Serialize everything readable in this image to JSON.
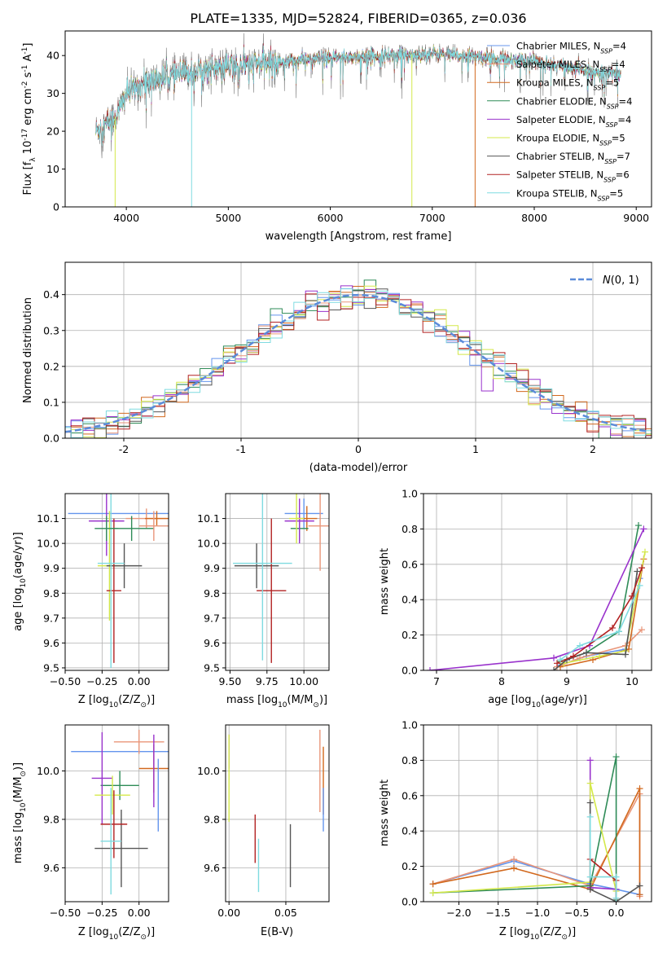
{
  "figure_title": "PLATE=1335, MJD=52824, FIBERID=0365, z=0.036",
  "colors": {
    "chabrier_miles": "#6495ed",
    "salpeter_miles": "#e9967a",
    "kroupa_miles": "#d2691e",
    "chabrier_elodie": "#2e8b57",
    "salpeter_elodie": "#9932cc",
    "kroupa_elodie": "#d4e84a",
    "chabrier_stelib": "#555555",
    "salpeter_stelib": "#b22222",
    "kroupa_stelib": "#7fdbe0",
    "data": "#888888",
    "gauss": "#5b8bd9",
    "grid": "#b0b0b0"
  },
  "legend_models": [
    {
      "key": "chabrier_miles",
      "name": "Chabrier MILES",
      "nssp": "4"
    },
    {
      "key": "salpeter_miles",
      "name": "Salpeter MILES",
      "nssp": "4"
    },
    {
      "key": "kroupa_miles",
      "name": "Kroupa MILES",
      "nssp": "5"
    },
    {
      "key": "chabrier_elodie",
      "name": "Chabrier ELODIE",
      "nssp": "4"
    },
    {
      "key": "salpeter_elodie",
      "name": "Salpeter ELODIE",
      "nssp": "4"
    },
    {
      "key": "kroupa_elodie",
      "name": "Kroupa ELODIE",
      "nssp": "5"
    },
    {
      "key": "chabrier_stelib",
      "name": "Chabrier STELIB",
      "nssp": "7"
    },
    {
      "key": "salpeter_stelib",
      "name": "Salpeter STELIB",
      "nssp": "6"
    },
    {
      "key": "kroupa_stelib",
      "name": "Kroupa STELIB",
      "nssp": "5"
    }
  ],
  "chart_data": [
    {
      "id": "spectrum",
      "type": "line",
      "xlabel": "wavelength [Angstrom, rest frame]",
      "ylabel": "Flux [f_λ 10^-17 erg cm^-2 s^-1 A^-1]",
      "xlim": [
        3400,
        9150
      ],
      "ylim": [
        0,
        46.5
      ],
      "xticks": [
        4000,
        5000,
        6000,
        7000,
        8000,
        9000
      ],
      "yticks": [
        0,
        10,
        20,
        30,
        40
      ],
      "legend": "top-right",
      "x_range": [
        3700,
        8850
      ],
      "continuum_points": [
        [
          3700,
          20
        ],
        [
          3900,
          24
        ],
        [
          4000,
          30
        ],
        [
          4200,
          33
        ],
        [
          4500,
          35
        ],
        [
          4800,
          36.5
        ],
        [
          5200,
          37.5
        ],
        [
          5800,
          39
        ],
        [
          6500,
          40
        ],
        [
          7000,
          40.5
        ],
        [
          7500,
          39.5
        ],
        [
          8000,
          38.5
        ],
        [
          8500,
          36
        ],
        [
          8850,
          35
        ]
      ],
      "dropouts": [
        {
          "series": "kroupa_elodie",
          "x": 3890,
          "y_min": 0
        },
        {
          "series": "kroupa_stelib",
          "x": 4640,
          "y_min": 0
        },
        {
          "series": "kroupa_elodie",
          "x": 6800,
          "y_min": 0
        },
        {
          "series": "kroupa_miles",
          "x": 7420,
          "y_min": 0
        }
      ]
    },
    {
      "id": "residuals",
      "type": "histogram",
      "xlabel": "(data-model)/error",
      "ylabel": "Normed distribution",
      "xlim": [
        -2.5,
        2.5
      ],
      "ylim": [
        0,
        0.49
      ],
      "xticks": [
        -2,
        -1,
        0,
        1,
        2
      ],
      "yticks": [
        0.0,
        0.1,
        0.2,
        0.3,
        0.4
      ],
      "bin_width": 0.1,
      "gauss_label": "N(0,1)",
      "legend": "top-right"
    },
    {
      "id": "age_vs_Z",
      "type": "errorbar",
      "xlabel": "Z [log10(Z/Z☉)]",
      "ylabel": "age  [log10(age/yr)]",
      "xlim": [
        -0.5,
        0.2
      ],
      "ylim": [
        9.49,
        10.2
      ],
      "xticks": [
        -0.5,
        -0.25,
        0.0
      ],
      "xticklabels": [
        "−0.50",
        "−0.25",
        "0.00"
      ],
      "yticks": [
        9.5,
        9.6,
        9.7,
        9.8,
        9.9,
        10.0,
        10.1
      ],
      "points": [
        {
          "series": "chabrier_miles",
          "x": -0.08,
          "xerr": 0.4,
          "y": 10.12,
          "yerr": 0.0
        },
        {
          "series": "salpeter_miles",
          "x": 0.05,
          "xerr": 0.14,
          "y": 10.1,
          "yerr": 0.04
        },
        {
          "series": "kroupa_miles",
          "x": 0.12,
          "xerr": 0.08,
          "y": 10.1,
          "yerr": 0.03
        },
        {
          "series": "chabrier_elodie",
          "x": -0.05,
          "xerr": 0.15,
          "y": 10.06,
          "yerr": 0.05
        },
        {
          "series": "salpeter_elodie",
          "x": -0.22,
          "xerr": 0.12,
          "y": 10.09,
          "yerr": 0.14
        },
        {
          "series": "kroupa_elodie",
          "x": -0.2,
          "xerr": 0.08,
          "y": 9.91,
          "yerr": 0.22
        },
        {
          "series": "chabrier_stelib",
          "x": -0.1,
          "xerr": 0.12,
          "y": 9.91,
          "yerr": 0.09
        },
        {
          "series": "salpeter_stelib",
          "x": -0.17,
          "xerr": 0.05,
          "y": 9.81,
          "yerr": 0.29
        },
        {
          "series": "kroupa_stelib",
          "x": -0.19,
          "xerr": 0.09,
          "y": 9.92,
          "yerr": 0.42
        },
        {
          "series": "salpeter_miles",
          "x": 0.1,
          "xerr": 0.1,
          "y": 10.07,
          "yerr": 0.06
        },
        {
          "series": "chabrier_elodie",
          "x": -0.22,
          "xerr": 0.08,
          "y": 10.06,
          "yerr": 0.05
        }
      ]
    },
    {
      "id": "age_vs_mass",
      "type": "errorbar",
      "xlabel": "mass [log10(M/M☉)]",
      "xlim": [
        9.47,
        10.17
      ],
      "ylim": [
        9.49,
        10.2
      ],
      "xticks": [
        9.5,
        9.75,
        10.0
      ],
      "xticklabels": [
        "9.50",
        "9.75",
        "10.00"
      ],
      "yticks": [
        9.5,
        9.6,
        9.7,
        9.8,
        9.9,
        10.0,
        10.1
      ],
      "points": [
        {
          "series": "chabrier_miles",
          "x": 10.0,
          "xerr": 0.13,
          "y": 10.12,
          "yerr": 0.06
        },
        {
          "series": "salpeter_miles",
          "x": 10.11,
          "xerr": 0.08,
          "y": 10.07,
          "yerr": 0.18
        },
        {
          "series": "kroupa_miles",
          "x": 10.02,
          "xerr": 0.07,
          "y": 10.1,
          "yerr": 0.05
        },
        {
          "series": "chabrier_elodie",
          "x": 9.97,
          "xerr": 0.06,
          "y": 10.06,
          "yerr": 0.05
        },
        {
          "series": "salpeter_elodie",
          "x": 9.97,
          "xerr": 0.1,
          "y": 10.09,
          "yerr": 0.09
        },
        {
          "series": "kroupa_elodie",
          "x": 9.95,
          "xerr": 0.05,
          "y": 10.1,
          "yerr": 0.1
        },
        {
          "series": "chabrier_stelib",
          "x": 9.68,
          "xerr": 0.15,
          "y": 9.91,
          "yerr": 0.09
        },
        {
          "series": "salpeter_stelib",
          "x": 9.78,
          "xerr": 0.1,
          "y": 9.81,
          "yerr": 0.29
        },
        {
          "series": "kroupa_stelib",
          "x": 9.72,
          "xerr": 0.2,
          "y": 9.92,
          "yerr": 0.39
        }
      ]
    },
    {
      "id": "mass_weight_vs_age",
      "type": "line",
      "xlabel": "age  [log10(age/yr)]",
      "ylabel": "mass weight",
      "xlim": [
        6.8,
        10.3
      ],
      "ylim": [
        0,
        1.0
      ],
      "xticks": [
        7,
        8,
        9,
        10
      ],
      "yticks": [
        0.0,
        0.2,
        0.4,
        0.6,
        0.8,
        1.0
      ],
      "series": [
        {
          "key": "chabrier_miles",
          "points": [
            [
              8.9,
              0.03
            ],
            [
              9.3,
              0.08
            ],
            [
              9.9,
              0.12
            ],
            [
              10.12,
              0.52
            ]
          ]
        },
        {
          "key": "salpeter_miles",
          "points": [
            [
              8.85,
              0.02
            ],
            [
              9.2,
              0.07
            ],
            [
              9.9,
              0.14
            ],
            [
              10.15,
              0.23
            ]
          ]
        },
        {
          "key": "kroupa_miles",
          "points": [
            [
              8.9,
              0.02
            ],
            [
              9.4,
              0.06
            ],
            [
              9.95,
              0.12
            ],
            [
              10.18,
              0.63
            ]
          ]
        },
        {
          "key": "chabrier_elodie",
          "points": [
            [
              8.9,
              0.05
            ],
            [
              9.3,
              0.1
            ],
            [
              9.8,
              0.22
            ],
            [
              10.1,
              0.82
            ]
          ]
        },
        {
          "key": "salpeter_elodie",
          "points": [
            [
              6.9,
              0.0
            ],
            [
              8.8,
              0.07
            ],
            [
              9.35,
              0.14
            ],
            [
              10.18,
              0.8
            ]
          ]
        },
        {
          "key": "kroupa_elodie",
          "points": [
            [
              8.95,
              0.04
            ],
            [
              9.5,
              0.08
            ],
            [
              9.9,
              0.11
            ],
            [
              10.2,
              0.67
            ]
          ]
        },
        {
          "key": "chabrier_stelib",
          "points": [
            [
              8.8,
              0.0
            ],
            [
              9.0,
              0.06
            ],
            [
              9.3,
              0.1
            ],
            [
              9.9,
              0.09
            ],
            [
              10.08,
              0.56
            ]
          ]
        },
        {
          "key": "salpeter_stelib",
          "points": [
            [
              8.85,
              0.04
            ],
            [
              9.1,
              0.08
            ],
            [
              9.7,
              0.24
            ],
            [
              10.0,
              0.42
            ],
            [
              10.15,
              0.58
            ]
          ]
        },
        {
          "key": "kroupa_stelib",
          "points": [
            [
              8.9,
              0.06
            ],
            [
              9.2,
              0.14
            ],
            [
              9.8,
              0.22
            ],
            [
              10.12,
              0.48
            ]
          ]
        }
      ]
    },
    {
      "id": "mass_vs_Z",
      "type": "errorbar",
      "xlabel": "Z [log10(Z/Z☉)]",
      "ylabel": "mass [log10(M/M☉)]",
      "xlim": [
        -0.5,
        0.2
      ],
      "ylim": [
        9.46,
        10.19
      ],
      "xticks": [
        -0.5,
        -0.25,
        0.0
      ],
      "xticklabels": [
        "−0.50",
        "−0.25",
        "0.00"
      ],
      "yticks": [
        9.6,
        9.8,
        10.0
      ],
      "points": [
        {
          "series": "chabrier_miles",
          "x": -0.08,
          "xerr": 0.38,
          "y": 10.08,
          "yerr": 0.0
        },
        {
          "series": "salpeter_miles",
          "x": 0.0,
          "xerr": 0.17,
          "y": 10.12,
          "yerr": 0.05
        },
        {
          "series": "kroupa_miles",
          "x": 0.1,
          "xerr": 0.1,
          "y": 10.01,
          "yerr": 0.1
        },
        {
          "series": "chabrier_elodie",
          "x": -0.13,
          "xerr": 0.13,
          "y": 9.94,
          "yerr": 0.06
        },
        {
          "series": "salpeter_elodie",
          "x": -0.25,
          "xerr": 0.07,
          "y": 9.97,
          "yerr": 0.19
        },
        {
          "series": "kroupa_elodie",
          "x": -0.18,
          "xerr": 0.12,
          "y": 9.9,
          "yerr": 0.08
        },
        {
          "series": "chabrier_stelib",
          "x": -0.12,
          "xerr": 0.18,
          "y": 9.68,
          "yerr": 0.16
        },
        {
          "series": "salpeter_stelib",
          "x": -0.17,
          "xerr": 0.09,
          "y": 9.78,
          "yerr": 0.14
        },
        {
          "series": "kroupa_stelib",
          "x": -0.19,
          "xerr": 0.07,
          "y": 9.71,
          "yerr": 0.22
        },
        {
          "series": "salpeter_elodie",
          "x": 0.1,
          "xerr": 0.0,
          "y": 10.0,
          "yerr": 0.15
        },
        {
          "series": "chabrier_miles",
          "x": 0.13,
          "xerr": 0.0,
          "y": 9.9,
          "yerr": 0.15
        }
      ]
    },
    {
      "id": "mass_vs_ebv",
      "type": "errorbar",
      "xlabel": "E(B-V)",
      "xlim": [
        -0.003,
        0.088
      ],
      "ylim": [
        9.46,
        10.19
      ],
      "xticks": [
        0.0,
        0.05
      ],
      "xticklabels": [
        "0.00",
        "0.05"
      ],
      "yticks": [
        9.6,
        9.8,
        10.0
      ],
      "points": [
        {
          "series": "salpeter_elodie",
          "x": 0.0,
          "xerr": 0.0,
          "y": 10.08,
          "yerr": 0.07
        },
        {
          "series": "kroupa_elodie",
          "x": 0.0,
          "xerr": 0.0,
          "y": 9.97,
          "yerr": 0.18
        },
        {
          "series": "salpeter_stelib",
          "x": 0.023,
          "xerr": 0.0,
          "y": 9.72,
          "yerr": 0.1
        },
        {
          "series": "kroupa_stelib",
          "x": 0.026,
          "xerr": 0.0,
          "y": 9.61,
          "yerr": 0.11
        },
        {
          "series": "chabrier_stelib",
          "x": 0.054,
          "xerr": 0.0,
          "y": 9.65,
          "yerr": 0.13
        },
        {
          "series": "salpeter_miles",
          "x": 0.08,
          "xerr": 0.0,
          "y": 10.0,
          "yerr": 0.17
        },
        {
          "series": "kroupa_miles",
          "x": 0.083,
          "xerr": 0.0,
          "y": 9.96,
          "yerr": 0.14
        },
        {
          "series": "chabrier_miles",
          "x": 0.083,
          "xerr": 0.0,
          "y": 9.84,
          "yerr": 0.09
        }
      ]
    },
    {
      "id": "mass_weight_vs_Z",
      "type": "line",
      "xlabel": "Z [log10(Z/Z☉)]",
      "ylabel": "mass weight",
      "xlim": [
        -2.45,
        0.45
      ],
      "ylim": [
        0,
        1.0
      ],
      "xticks": [
        -2.0,
        -1.5,
        -1.0,
        -0.5,
        0.0
      ],
      "xticklabels": [
        "−2.0",
        "−1.5",
        "−1.0",
        "−0.5",
        "0.0"
      ],
      "yticks": [
        0.0,
        0.2,
        0.4,
        0.6,
        0.8,
        1.0
      ],
      "series": [
        {
          "key": "chabrier_miles",
          "points": [
            [
              -2.33,
              0.1
            ],
            [
              -1.3,
              0.23
            ],
            [
              -0.33,
              0.1
            ],
            [
              0.0,
              0.07
            ],
            [
              0.3,
              0.04
            ]
          ]
        },
        {
          "key": "salpeter_miles",
          "points": [
            [
              -2.33,
              0.1
            ],
            [
              -1.3,
              0.24
            ],
            [
              -0.33,
              0.09
            ],
            [
              0.3,
              0.61
            ],
            [
              0.3,
              0.03
            ]
          ]
        },
        {
          "key": "kroupa_miles",
          "points": [
            [
              -2.33,
              0.1
            ],
            [
              -1.3,
              0.19
            ],
            [
              -0.33,
              0.07
            ],
            [
              0.3,
              0.64
            ],
            [
              0.3,
              0.04
            ]
          ]
        },
        {
          "key": "chabrier_elodie",
          "points": [
            [
              -2.33,
              0.05
            ],
            [
              -0.33,
              0.09
            ],
            [
              0.0,
              0.82
            ],
            [
              0.0,
              0.01
            ]
          ]
        },
        {
          "key": "salpeter_elodie",
          "points": [
            [
              -0.33,
              0.8
            ],
            [
              -0.33,
              0.08
            ],
            [
              0.0,
              0.07
            ]
          ]
        },
        {
          "key": "kroupa_elodie",
          "points": [
            [
              -2.33,
              0.05
            ],
            [
              -0.33,
              0.11
            ],
            [
              -0.33,
              0.67
            ],
            [
              0.0,
              0.06
            ]
          ]
        },
        {
          "key": "chabrier_stelib",
          "points": [
            [
              -0.33,
              0.56
            ],
            [
              -0.33,
              0.07
            ],
            [
              0.0,
              0.0
            ],
            [
              0.3,
              0.09
            ]
          ]
        },
        {
          "key": "salpeter_stelib",
          "points": [
            [
              -0.33,
              0.24
            ],
            [
              0.0,
              0.12
            ],
            [
              0.0,
              0.02
            ]
          ]
        },
        {
          "key": "kroupa_stelib",
          "points": [
            [
              -0.33,
              0.48
            ],
            [
              -0.33,
              0.14
            ],
            [
              0.0,
              0.14
            ],
            [
              0.0,
              0.02
            ]
          ]
        }
      ]
    }
  ]
}
